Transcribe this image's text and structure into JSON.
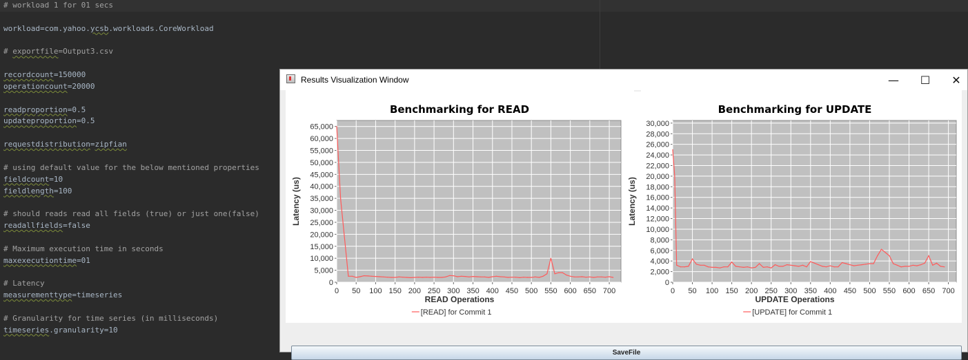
{
  "editor": {
    "lines": [
      {
        "parts": [
          {
            "t": "# workload 1 for 01 secs",
            "c": "cm"
          }
        ]
      },
      {
        "parts": []
      },
      {
        "parts": [
          {
            "t": "workload=com.yahoo."
          },
          {
            "t": "ycsb",
            "u": true
          },
          {
            "t": ".workloads.CoreWorkload"
          }
        ]
      },
      {
        "parts": []
      },
      {
        "parts": [
          {
            "t": "# ",
            "c": "cm"
          },
          {
            "t": "exportfile",
            "c": "cm",
            "u": true
          },
          {
            "t": "=Output3.csv",
            "c": "cm"
          }
        ]
      },
      {
        "parts": []
      },
      {
        "parts": [
          {
            "t": "recordcount",
            "u": true
          },
          {
            "t": "=150000"
          }
        ]
      },
      {
        "parts": [
          {
            "t": "operationcount",
            "u": true
          },
          {
            "t": "=20000"
          }
        ]
      },
      {
        "parts": []
      },
      {
        "parts": [
          {
            "t": "readproportion",
            "u": true
          },
          {
            "t": "=0.5"
          }
        ]
      },
      {
        "parts": [
          {
            "t": "updateproportion",
            "u": true
          },
          {
            "t": "=0.5"
          }
        ]
      },
      {
        "parts": []
      },
      {
        "parts": [
          {
            "t": "requestdistribution",
            "u": true
          },
          {
            "t": "="
          },
          {
            "t": "zipfian",
            "u": true
          }
        ]
      },
      {
        "parts": []
      },
      {
        "parts": [
          {
            "t": "# using default value for the below mentioned properties",
            "c": "cm"
          }
        ]
      },
      {
        "parts": [
          {
            "t": "fieldcount",
            "u": true
          },
          {
            "t": "=10"
          }
        ]
      },
      {
        "parts": [
          {
            "t": "fieldlength",
            "u": true
          },
          {
            "t": "=100"
          }
        ]
      },
      {
        "parts": []
      },
      {
        "parts": [
          {
            "t": "# should reads read all fields (true) or just one(false)",
            "c": "cm"
          }
        ]
      },
      {
        "parts": [
          {
            "t": "readallfields",
            "u": true
          },
          {
            "t": "=false"
          }
        ]
      },
      {
        "parts": []
      },
      {
        "parts": [
          {
            "t": "# Maximum execution time in seconds",
            "c": "cm"
          }
        ]
      },
      {
        "parts": [
          {
            "t": "maxexecutiontime",
            "u": true
          },
          {
            "t": "=01"
          }
        ]
      },
      {
        "parts": []
      },
      {
        "parts": [
          {
            "t": "# Latency",
            "c": "cm"
          }
        ]
      },
      {
        "parts": [
          {
            "t": "measurementtype",
            "u": true
          },
          {
            "t": "=timeseries"
          }
        ]
      },
      {
        "parts": []
      },
      {
        "parts": [
          {
            "t": "# Granularity for time series (in milliseconds)",
            "c": "cm"
          }
        ]
      },
      {
        "parts": [
          {
            "t": "timeseries",
            "u": true
          },
          {
            "t": ".granularity=10"
          }
        ]
      }
    ]
  },
  "window": {
    "title": "Results Visualization Window",
    "minimize": "—",
    "maximize": "☐",
    "close": "✕"
  },
  "save_button": "SaveFile",
  "colors": {
    "series": "#ff5a5a",
    "plot_bg": "#c0c0c0",
    "grid": "#ffffff"
  },
  "chart_data": [
    {
      "type": "line",
      "title": "Benchmarking for READ",
      "xlabel": "READ Operations",
      "ylabel": "Latency (us)",
      "xlim": [
        0,
        730
      ],
      "ylim": [
        0,
        67500
      ],
      "xticks": [
        0,
        50,
        100,
        150,
        200,
        250,
        300,
        350,
        400,
        450,
        500,
        550,
        600,
        650,
        700
      ],
      "yticks": [
        0,
        5000,
        10000,
        15000,
        20000,
        25000,
        30000,
        35000,
        40000,
        45000,
        50000,
        55000,
        60000,
        65000
      ],
      "legend": "[READ] for Commit 1",
      "legend_position": "bottom",
      "x": [
        0,
        10,
        30,
        40,
        50,
        60,
        70,
        80,
        90,
        100,
        110,
        120,
        130,
        140,
        150,
        160,
        170,
        180,
        190,
        200,
        210,
        220,
        230,
        240,
        250,
        260,
        270,
        280,
        290,
        300,
        310,
        320,
        330,
        340,
        350,
        360,
        370,
        380,
        390,
        400,
        410,
        420,
        430,
        440,
        450,
        460,
        470,
        480,
        490,
        500,
        510,
        520,
        530,
        540,
        550,
        560,
        570,
        580,
        590,
        600,
        610,
        620,
        630,
        640,
        650,
        660,
        670,
        680,
        690,
        700,
        710
      ],
      "y": [
        65000,
        35000,
        2500,
        2500,
        2000,
        2300,
        2700,
        2600,
        2500,
        2400,
        2300,
        2200,
        2100,
        2000,
        2000,
        2200,
        2100,
        2000,
        1900,
        2000,
        2100,
        2000,
        2100,
        2000,
        2100,
        2000,
        2000,
        2200,
        2800,
        2700,
        2300,
        2500,
        2400,
        2200,
        2400,
        2300,
        2200,
        2200,
        2000,
        2300,
        2500,
        2300,
        2200,
        2000,
        2100,
        2100,
        1900,
        2100,
        2000,
        2000,
        2200,
        2000,
        2500,
        3500,
        10000,
        3500,
        4000,
        4000,
        3000,
        2500,
        2200,
        2200,
        2300,
        2100,
        2200,
        2000,
        2200,
        2200,
        2100,
        2300,
        2000
      ]
    },
    {
      "type": "line",
      "title": "Benchmarking for UPDATE",
      "xlabel": "UPDATE Operations",
      "ylabel": "Latency (us)",
      "xlim": [
        0,
        720
      ],
      "ylim": [
        0,
        30500
      ],
      "xticks": [
        0,
        50,
        100,
        150,
        200,
        250,
        300,
        350,
        400,
        450,
        500,
        550,
        600,
        650,
        700
      ],
      "yticks": [
        0,
        2000,
        4000,
        6000,
        8000,
        10000,
        12000,
        14000,
        16000,
        18000,
        20000,
        22000,
        24000,
        26000,
        28000,
        30000
      ],
      "legend": "[UPDATE] for Commit 1",
      "legend_position": "bottom",
      "x": [
        0,
        5,
        10,
        20,
        30,
        40,
        50,
        60,
        70,
        80,
        90,
        100,
        110,
        120,
        130,
        140,
        150,
        160,
        170,
        180,
        190,
        200,
        210,
        220,
        230,
        240,
        250,
        260,
        270,
        280,
        290,
        300,
        310,
        320,
        330,
        340,
        350,
        360,
        370,
        380,
        390,
        400,
        410,
        420,
        430,
        440,
        450,
        460,
        470,
        480,
        490,
        500,
        510,
        520,
        530,
        540,
        550,
        560,
        570,
        580,
        590,
        600,
        610,
        620,
        630,
        640,
        650,
        660,
        670,
        680,
        690
      ],
      "y": [
        25000,
        20000,
        3200,
        2900,
        2900,
        3000,
        4400,
        3400,
        3200,
        3200,
        2900,
        2800,
        2800,
        2700,
        2900,
        2900,
        3800,
        3000,
        2900,
        2800,
        2900,
        2700,
        2800,
        3500,
        2800,
        2900,
        2700,
        3300,
        3000,
        3000,
        3300,
        3200,
        3100,
        3000,
        3200,
        2900,
        3900,
        3600,
        3300,
        3000,
        2900,
        3100,
        2900,
        2900,
        3700,
        3500,
        3300,
        3100,
        3200,
        3300,
        3400,
        3500,
        3500,
        5000,
        6200,
        5600,
        5000,
        3500,
        3200,
        2900,
        3000,
        3000,
        3200,
        3100,
        3300,
        3600,
        5000,
        3200,
        3600,
        3000,
        2900
      ]
    }
  ]
}
